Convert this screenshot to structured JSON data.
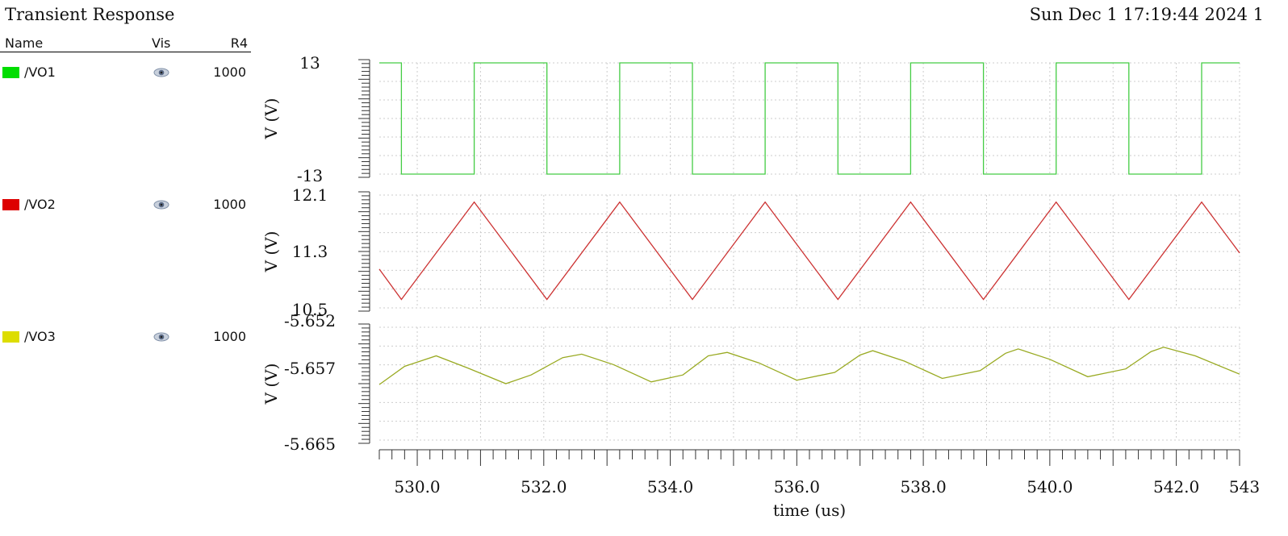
{
  "header": {
    "title": "Transient Response",
    "datetime": "Sun Dec 1 17:19:44 2024 1"
  },
  "legend": {
    "col_name": "Name",
    "col_vis": "Vis",
    "col_r4": "R4",
    "rows": [
      {
        "name": "/VO1",
        "color": "#00dd00",
        "vis_icon": "eye-icon",
        "r4": "1000"
      },
      {
        "name": "/VO2",
        "color": "#dd0000",
        "vis_icon": "eye-icon",
        "r4": "1000"
      },
      {
        "name": "/VO3",
        "color": "#dddd00",
        "vis_icon": "eye-icon",
        "r4": "1000"
      }
    ]
  },
  "chart_data": {
    "type": "line",
    "xlabel": "time (us)",
    "xlim": [
      529.4,
      543
    ],
    "x_ticks": [
      "530.0",
      "532.0",
      "534.0",
      "536.0",
      "538.0",
      "540.0",
      "542.0",
      "543"
    ],
    "grid": true,
    "panels": [
      {
        "name": "/VO1",
        "color": "#44cc44",
        "ylabel": "V (V)",
        "y_tick_labels": [
          "13",
          "-13"
        ],
        "ylim": [
          -13,
          13
        ],
        "series": [
          {
            "name": "/VO1",
            "x": [
              529.4,
              529.75,
              529.75,
              530.9,
              530.9,
              532.05,
              532.05,
              533.2,
              533.2,
              534.35,
              534.35,
              535.5,
              535.5,
              536.65,
              536.65,
              537.8,
              537.8,
              538.95,
              538.95,
              540.1,
              540.1,
              541.25,
              541.25,
              542.4,
              542.4,
              543
            ],
            "y": [
              13,
              13,
              -13,
              -13,
              13,
              13,
              -13,
              -13,
              13,
              13,
              -13,
              -13,
              13,
              13,
              -13,
              -13,
              13,
              13,
              -13,
              -13,
              13,
              13,
              -13,
              -13,
              13,
              13
            ]
          }
        ]
      },
      {
        "name": "/VO2",
        "color": "#cc3333",
        "ylabel": "V (V)",
        "y_tick_labels": [
          "12.1",
          "11.3",
          "10.5"
        ],
        "ylim": [
          10.5,
          12.1
        ],
        "series": [
          {
            "name": "/VO2",
            "x": [
              529.4,
              529.75,
              530.9,
              532.05,
              533.2,
              534.35,
              535.5,
              536.65,
              537.8,
              538.95,
              540.1,
              541.25,
              542.4,
              543
            ],
            "y": [
              11.05,
              10.62,
              12.0,
              10.62,
              12.0,
              10.62,
              12.0,
              10.62,
              12.0,
              10.62,
              12.0,
              10.62,
              12.0,
              11.28
            ]
          }
        ]
      },
      {
        "name": "/VO3",
        "color": "#99aa22",
        "ylabel": "V (V)",
        "y_tick_labels": [
          "-5.652",
          "-5.657",
          "-5.665"
        ],
        "ylim": [
          -5.665,
          -5.652
        ],
        "series": [
          {
            "name": "/VO3",
            "x": [
              529.4,
              529.8,
              530.3,
              530.8,
              531.4,
              531.8,
              532.3,
              532.6,
              533.1,
              533.7,
              534.2,
              534.6,
              534.9,
              535.4,
              536.0,
              536.6,
              537.0,
              537.2,
              537.7,
              538.3,
              538.9,
              539.3,
              539.5,
              540.0,
              540.6,
              541.2,
              541.6,
              541.8,
              542.3,
              543.0
            ],
            "y": [
              -5.6586,
              -5.6565,
              -5.6553,
              -5.6567,
              -5.6585,
              -5.6575,
              -5.6555,
              -5.6551,
              -5.6563,
              -5.6583,
              -5.6575,
              -5.6553,
              -5.6549,
              -5.6561,
              -5.6581,
              -5.6572,
              -5.6552,
              -5.6547,
              -5.6559,
              -5.6579,
              -5.657,
              -5.655,
              -5.6545,
              -5.6557,
              -5.6577,
              -5.6568,
              -5.6548,
              -5.6543,
              -5.6553,
              -5.6574
            ]
          }
        ]
      }
    ]
  }
}
